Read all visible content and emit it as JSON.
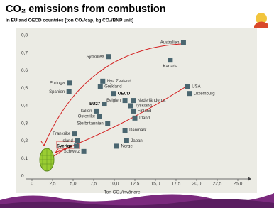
{
  "chart_data": {
    "type": "scatter",
    "title": "CO₂ emissions from combustion",
    "subtitle": "in EU and OECD countries  [ton CO₂/cap,  kg CO₂/BNP unit]",
    "x_label": "Ton CO₂/invånare",
    "labels": [
      "Australien",
      "Sydkorea",
      "Kanada",
      "Nya Zeeland",
      "Grekland",
      "Portugal",
      "Spanien",
      "OECD",
      "Belgien",
      "Nederländerna",
      "EU27",
      "Tyskland",
      "Italien",
      "Finland",
      "Österrike",
      "Irland",
      "Storbritannien",
      "Danmark",
      "Frankrike",
      "Island",
      "Japan",
      "Sverige",
      "Norge",
      "Schweiz",
      "USA",
      "Luxemburg"
    ],
    "x": [
      18.4,
      9.3,
      16.8,
      8.6,
      8.3,
      4.6,
      4.5,
      9.9,
      11.3,
      12.3,
      8.8,
      12.0,
      7.8,
      12.3,
      8.2,
      12.5,
      9.2,
      11.3,
      5.2,
      5.5,
      11.5,
      5.4,
      10.3,
      6.3,
      18.9,
      19.1
    ],
    "values": [
      0.76,
      0.68,
      0.66,
      0.54,
      0.51,
      0.53,
      0.48,
      0.47,
      0.43,
      0.43,
      0.41,
      0.4,
      0.37,
      0.37,
      0.34,
      0.33,
      0.3,
      0.26,
      0.24,
      0.2,
      0.2,
      0.17,
      0.17,
      0.14,
      0.51,
      0.47
    ],
    "color": "#4a6670",
    "xlim": [
      0,
      25
    ],
    "ylim": [
      0,
      0.8
    ],
    "xticks": [
      0,
      {
        "value": 2.5,
        "label": "2,5"
      },
      {
        "value": 5,
        "label": "5,0"
      },
      {
        "value": 7.5,
        "label": "7,5"
      },
      {
        "value": 10,
        "label": "10,0"
      },
      {
        "value": 12.5,
        "label": "12,5"
      },
      {
        "value": 15,
        "label": "15,0"
      },
      {
        "value": 17.5,
        "label": "17,5"
      },
      {
        "value": 20,
        "label": "20,0"
      },
      {
        "value": 22.5,
        "label": "22,5"
      },
      {
        "value": 25,
        "label": "25,0"
      }
    ],
    "yticks": [
      0,
      {
        "value": 0.1,
        "label": "0,1"
      },
      {
        "value": 0.2,
        "label": "0,2"
      },
      {
        "value": 0.3,
        "label": "0,3"
      },
      {
        "value": 0.4,
        "label": "0,4"
      },
      {
        "value": 0.5,
        "label": "0,5"
      },
      {
        "value": 0.6,
        "label": "0,6"
      },
      {
        "value": 0.7,
        "label": "0,7"
      },
      {
        "value": 0.8,
        "label": "0,8"
      }
    ]
  }
}
